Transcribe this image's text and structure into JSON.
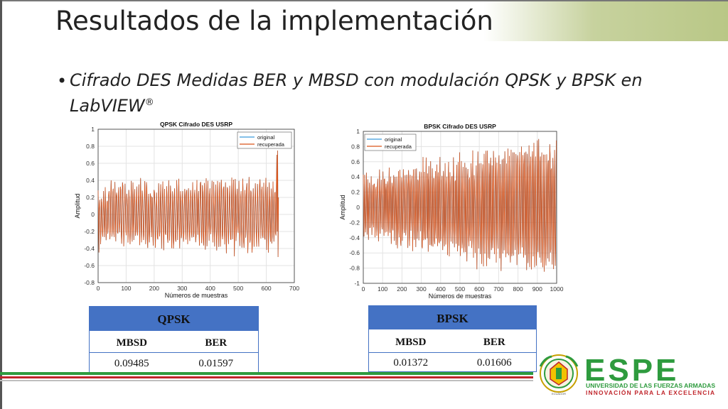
{
  "slide": {
    "title": "Resultados de la implementación",
    "bullet": "Cifrado DES Medidas BER y MBSD con modulación QPSK y BPSK  en LabVIEW",
    "bullet_sup": "®"
  },
  "chart_data": [
    {
      "type": "line",
      "title": "QPSK Cifrado DES USRP",
      "xlabel": "Números de muestras",
      "ylabel": "Amplitud",
      "xlim": [
        0,
        700
      ],
      "ylim": [
        -0.8,
        1
      ],
      "xticks": [
        "0",
        "100",
        "200",
        "300",
        "400",
        "500",
        "600",
        "700"
      ],
      "yticks": [
        "-0.8",
        "-0.6",
        "-0.4",
        "-0.2",
        "0",
        "0.2",
        "0.4",
        "0.6",
        "0.8",
        "1"
      ],
      "legend_position": "top-right",
      "grid": true,
      "n_samples": 645,
      "series": [
        {
          "name": "original",
          "color": "#3a9ad9"
        },
        {
          "name": "recuperada",
          "color": "#d95319"
        }
      ]
    },
    {
      "type": "line",
      "title": "BPSK Cifrado DES USRP",
      "xlabel": "Números de muestras",
      "ylabel": "Amplitud",
      "xlim": [
        0,
        1000
      ],
      "ylim": [
        -1,
        1
      ],
      "xticks": [
        "0",
        "100",
        "200",
        "300",
        "400",
        "500",
        "600",
        "700",
        "800",
        "900",
        "1000"
      ],
      "yticks": [
        "-1",
        "-0.8",
        "-0.6",
        "-0.4",
        "-0.2",
        "0",
        "0.2",
        "0.4",
        "0.6",
        "0.8",
        "1"
      ],
      "legend_position": "top-left",
      "grid": true,
      "n_samples": 1000,
      "series": [
        {
          "name": "original",
          "color": "#3a9ad9"
        },
        {
          "name": "recuperada",
          "color": "#d95319"
        }
      ]
    }
  ],
  "tables": {
    "qpsk": {
      "header": "QPSK",
      "col1": "MBSD",
      "col2": "BER",
      "val1": "0.09485",
      "val2": "0.01597"
    },
    "bpsk": {
      "header": "BPSK",
      "col1": "MBSD",
      "col2": "BER",
      "val1": "0.01372",
      "val2": "0.01606"
    }
  },
  "logo": {
    "wordmark": "ESPE",
    "line1": "UNIVERSIDAD DE LAS FUERZAS ARMADAS",
    "line2": "INNOVACIÓN PARA LA EXCELENCIA",
    "seal_text": "ECUADOR",
    "green": "#2e9b3e",
    "red": "#c0262c",
    "yellow": "#f2c200"
  },
  "colors": {
    "accent_green": "#b9c786",
    "table_blue": "#4472c4"
  }
}
